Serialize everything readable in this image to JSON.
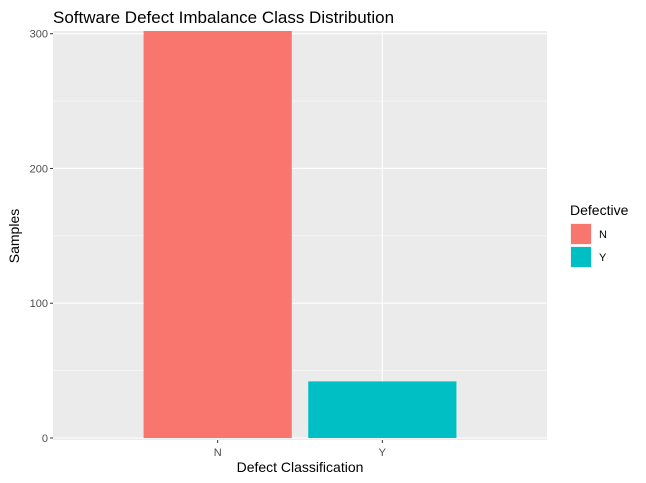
{
  "chart_data": {
    "type": "bar",
    "title": "Software Defect Imbalance Class Distribution",
    "xlabel": "Defect Classification",
    "ylabel": "Samples",
    "categories": [
      "N",
      "Y"
    ],
    "values": [
      302,
      42
    ],
    "colors": [
      "#F8766D",
      "#00BFC4"
    ],
    "ylim": [
      0,
      302
    ],
    "yticks": [
      0,
      100,
      200,
      300
    ],
    "grid": true,
    "legend": {
      "title": "Defective",
      "position": "right",
      "entries": [
        "N",
        "Y"
      ]
    }
  }
}
